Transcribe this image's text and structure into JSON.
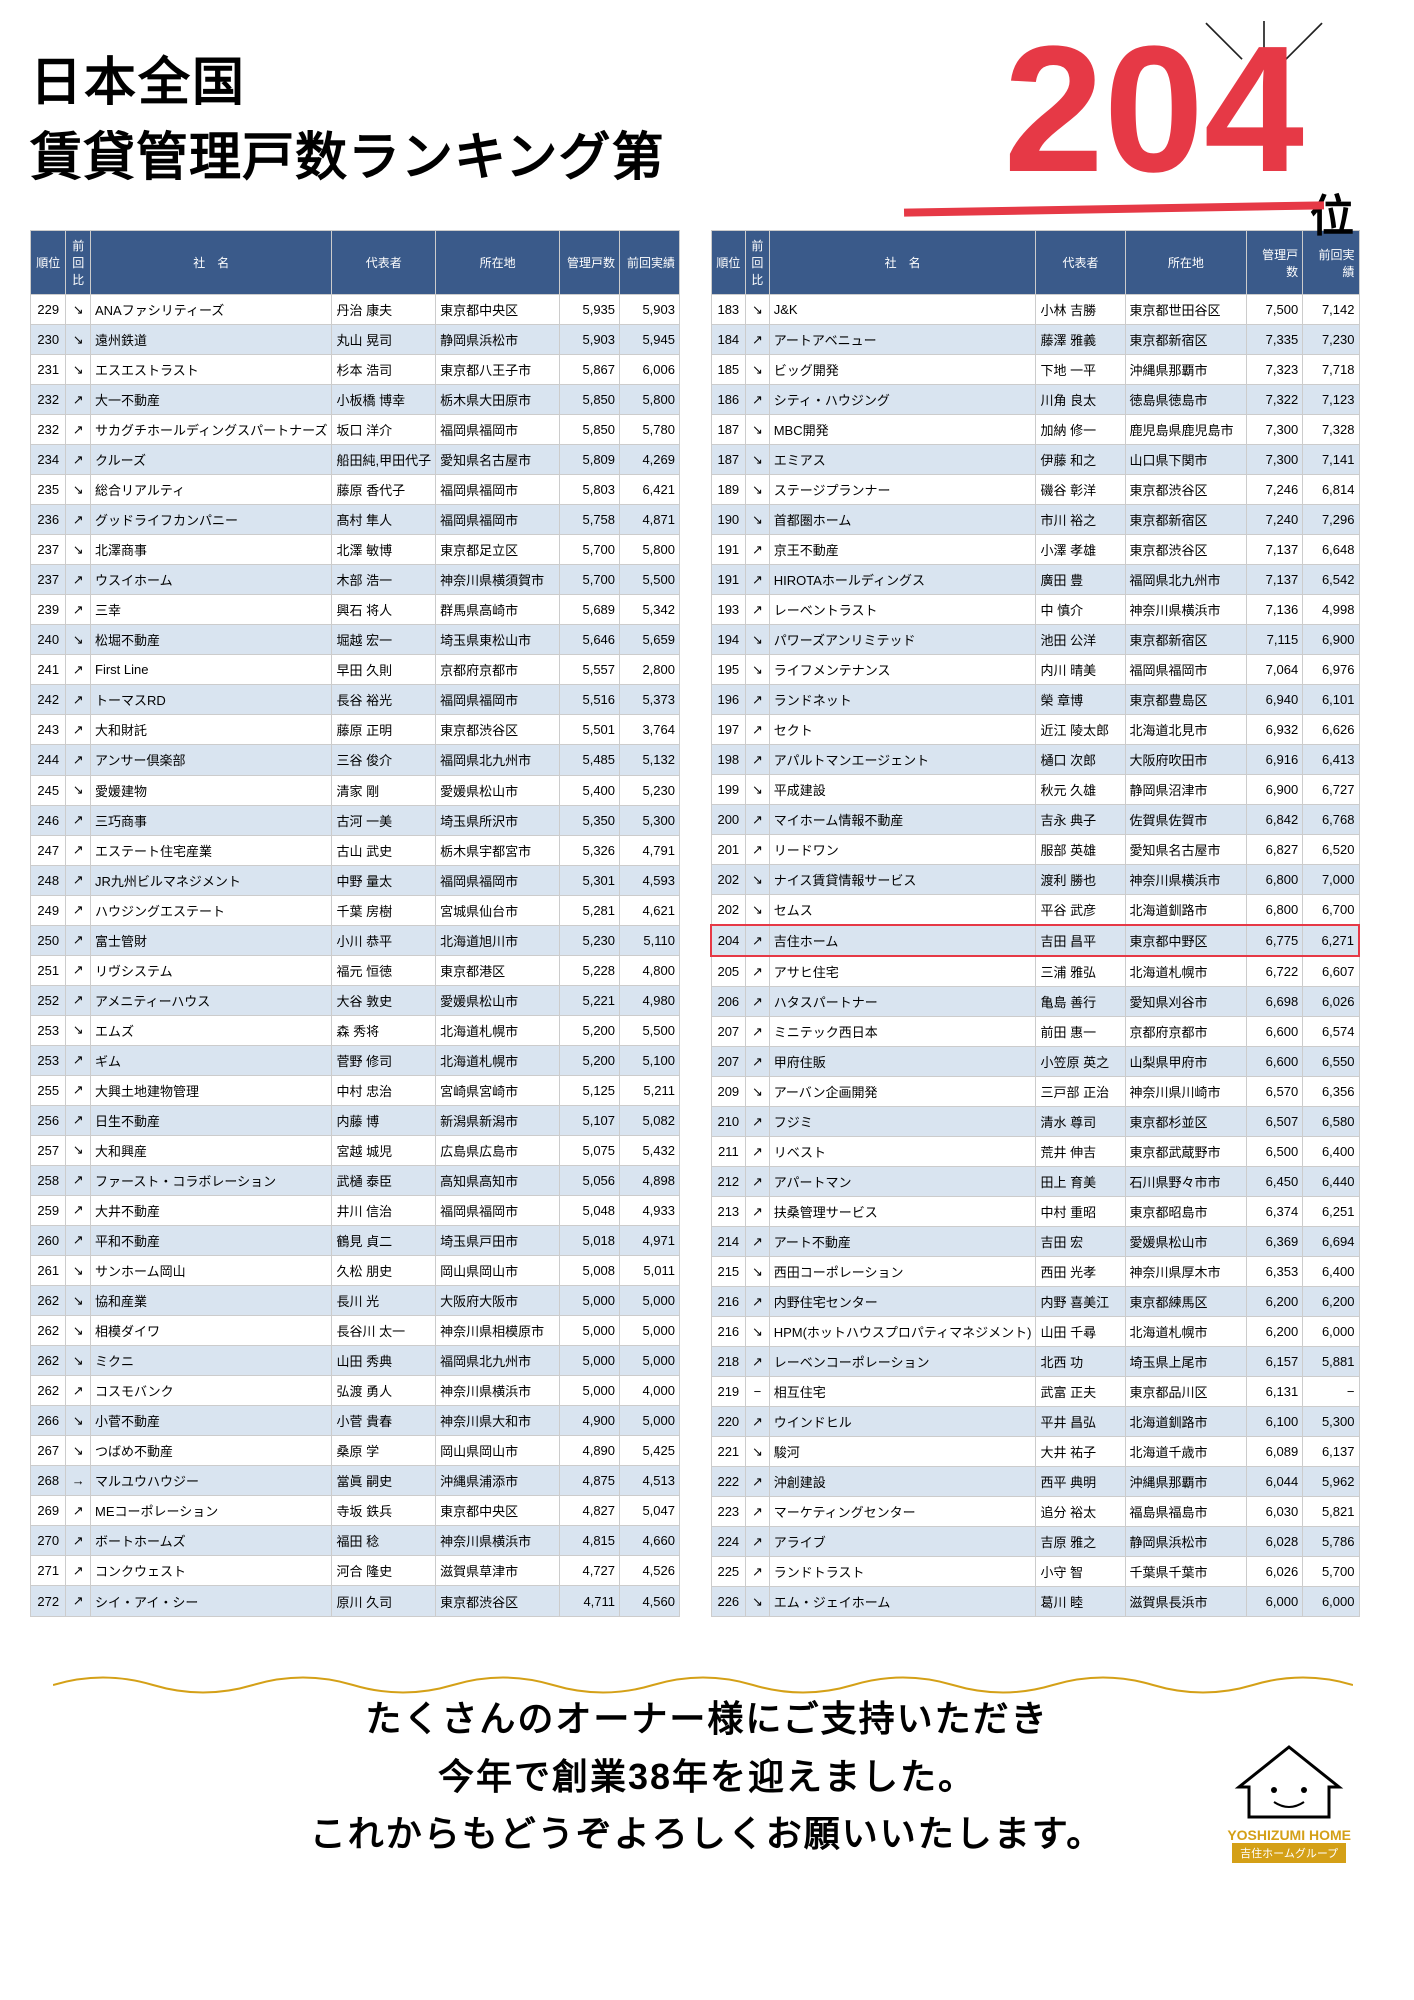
{
  "header": {
    "title_line1": "日本全国",
    "title_line2": "賃貸管理戸数ランキング第",
    "rank_number": "204",
    "rank_suffix": "位",
    "rank_color": "#e63946"
  },
  "table_headers": {
    "rank": "順位",
    "trend": "前回比",
    "name": "社　名",
    "rep": "代表者",
    "loc": "所在地",
    "count": "管理戸数",
    "prev": "前回実績"
  },
  "left_rows": [
    {
      "rank": "229",
      "trend": "↘",
      "name": "ANAファシリティーズ",
      "rep": "丹治 康夫",
      "loc": "東京都中央区",
      "count": "5,935",
      "prev": "5,903"
    },
    {
      "rank": "230",
      "trend": "↘",
      "name": "遠州鉄道",
      "rep": "丸山 晃司",
      "loc": "静岡県浜松市",
      "count": "5,903",
      "prev": "5,945"
    },
    {
      "rank": "231",
      "trend": "↘",
      "name": "エスエストラスト",
      "rep": "杉本 浩司",
      "loc": "東京都八王子市",
      "count": "5,867",
      "prev": "6,006"
    },
    {
      "rank": "232",
      "trend": "↗",
      "name": "大一不動産",
      "rep": "小板橋 博幸",
      "loc": "栃木県大田原市",
      "count": "5,850",
      "prev": "5,800"
    },
    {
      "rank": "232",
      "trend": "↗",
      "name": "サカグチホールディングスパートナーズ",
      "rep": "坂口 洋介",
      "loc": "福岡県福岡市",
      "count": "5,850",
      "prev": "5,780"
    },
    {
      "rank": "234",
      "trend": "↗",
      "name": "クルーズ",
      "rep": "船田純,甲田代子",
      "loc": "愛知県名古屋市",
      "count": "5,809",
      "prev": "4,269"
    },
    {
      "rank": "235",
      "trend": "↘",
      "name": "総合リアルティ",
      "rep": "藤原 香代子",
      "loc": "福岡県福岡市",
      "count": "5,803",
      "prev": "6,421"
    },
    {
      "rank": "236",
      "trend": "↗",
      "name": "グッドライフカンパニー",
      "rep": "髙村 隼人",
      "loc": "福岡県福岡市",
      "count": "5,758",
      "prev": "4,871"
    },
    {
      "rank": "237",
      "trend": "↘",
      "name": "北澤商事",
      "rep": "北澤 敏博",
      "loc": "東京都足立区",
      "count": "5,700",
      "prev": "5,800"
    },
    {
      "rank": "237",
      "trend": "↗",
      "name": "ウスイホーム",
      "rep": "木部 浩一",
      "loc": "神奈川県横須賀市",
      "count": "5,700",
      "prev": "5,500"
    },
    {
      "rank": "239",
      "trend": "↗",
      "name": "三幸",
      "rep": "興石 将人",
      "loc": "群馬県高崎市",
      "count": "5,689",
      "prev": "5,342"
    },
    {
      "rank": "240",
      "trend": "↘",
      "name": "松堀不動産",
      "rep": "堀越 宏一",
      "loc": "埼玉県東松山市",
      "count": "5,646",
      "prev": "5,659"
    },
    {
      "rank": "241",
      "trend": "↗",
      "name": "First Line",
      "rep": "早田 久則",
      "loc": "京都府京都市",
      "count": "5,557",
      "prev": "2,800"
    },
    {
      "rank": "242",
      "trend": "↗",
      "name": "トーマスRD",
      "rep": "長谷 裕光",
      "loc": "福岡県福岡市",
      "count": "5,516",
      "prev": "5,373"
    },
    {
      "rank": "243",
      "trend": "↗",
      "name": "大和財託",
      "rep": "藤原 正明",
      "loc": "東京都渋谷区",
      "count": "5,501",
      "prev": "3,764"
    },
    {
      "rank": "244",
      "trend": "↗",
      "name": "アンサー倶楽部",
      "rep": "三谷 俊介",
      "loc": "福岡県北九州市",
      "count": "5,485",
      "prev": "5,132"
    },
    {
      "rank": "245",
      "trend": "↘",
      "name": "愛媛建物",
      "rep": "清家 剛",
      "loc": "愛媛県松山市",
      "count": "5,400",
      "prev": "5,230"
    },
    {
      "rank": "246",
      "trend": "↗",
      "name": "三巧商事",
      "rep": "古河 一美",
      "loc": "埼玉県所沢市",
      "count": "5,350",
      "prev": "5,300"
    },
    {
      "rank": "247",
      "trend": "↗",
      "name": "エステート住宅産業",
      "rep": "古山 武史",
      "loc": "栃木県宇都宮市",
      "count": "5,326",
      "prev": "4,791"
    },
    {
      "rank": "248",
      "trend": "↗",
      "name": "JR九州ビルマネジメント",
      "rep": "中野 量太",
      "loc": "福岡県福岡市",
      "count": "5,301",
      "prev": "4,593"
    },
    {
      "rank": "249",
      "trend": "↗",
      "name": "ハウジングエステート",
      "rep": "千葉 房樹",
      "loc": "宮城県仙台市",
      "count": "5,281",
      "prev": "4,621"
    },
    {
      "rank": "250",
      "trend": "↗",
      "name": "富士管財",
      "rep": "小川 恭平",
      "loc": "北海道旭川市",
      "count": "5,230",
      "prev": "5,110"
    },
    {
      "rank": "251",
      "trend": "↗",
      "name": "リヴシステム",
      "rep": "福元 恒徳",
      "loc": "東京都港区",
      "count": "5,228",
      "prev": "4,800"
    },
    {
      "rank": "252",
      "trend": "↗",
      "name": "アメニティーハウス",
      "rep": "大谷 敦史",
      "loc": "愛媛県松山市",
      "count": "5,221",
      "prev": "4,980"
    },
    {
      "rank": "253",
      "trend": "↘",
      "name": "エムズ",
      "rep": "森 秀将",
      "loc": "北海道札幌市",
      "count": "5,200",
      "prev": "5,500"
    },
    {
      "rank": "253",
      "trend": "↗",
      "name": "ギム",
      "rep": "菅野 修司",
      "loc": "北海道札幌市",
      "count": "5,200",
      "prev": "5,100"
    },
    {
      "rank": "255",
      "trend": "↗",
      "name": "大興土地建物管理",
      "rep": "中村 忠治",
      "loc": "宮崎県宮崎市",
      "count": "5,125",
      "prev": "5,211"
    },
    {
      "rank": "256",
      "trend": "↗",
      "name": "日生不動産",
      "rep": "内藤 博",
      "loc": "新潟県新潟市",
      "count": "5,107",
      "prev": "5,082"
    },
    {
      "rank": "257",
      "trend": "↘",
      "name": "大和興産",
      "rep": "宮越 城児",
      "loc": "広島県広島市",
      "count": "5,075",
      "prev": "5,432"
    },
    {
      "rank": "258",
      "trend": "↗",
      "name": "ファースト・コラボレーション",
      "rep": "武樋 泰臣",
      "loc": "高知県高知市",
      "count": "5,056",
      "prev": "4,898"
    },
    {
      "rank": "259",
      "trend": "↗",
      "name": "大井不動産",
      "rep": "井川 信治",
      "loc": "福岡県福岡市",
      "count": "5,048",
      "prev": "4,933"
    },
    {
      "rank": "260",
      "trend": "↗",
      "name": "平和不動産",
      "rep": "鶴見 貞二",
      "loc": "埼玉県戸田市",
      "count": "5,018",
      "prev": "4,971"
    },
    {
      "rank": "261",
      "trend": "↘",
      "name": "サンホーム岡山",
      "rep": "久松 朋史",
      "loc": "岡山県岡山市",
      "count": "5,008",
      "prev": "5,011"
    },
    {
      "rank": "262",
      "trend": "↘",
      "name": "協和産業",
      "rep": "長川 光",
      "loc": "大阪府大阪市",
      "count": "5,000",
      "prev": "5,000"
    },
    {
      "rank": "262",
      "trend": "↘",
      "name": "相模ダイワ",
      "rep": "長谷川 太一",
      "loc": "神奈川県相模原市",
      "count": "5,000",
      "prev": "5,000"
    },
    {
      "rank": "262",
      "trend": "↘",
      "name": "ミクニ",
      "rep": "山田 秀典",
      "loc": "福岡県北九州市",
      "count": "5,000",
      "prev": "5,000"
    },
    {
      "rank": "262",
      "trend": "↗",
      "name": "コスモバンク",
      "rep": "弘渡 勇人",
      "loc": "神奈川県横浜市",
      "count": "5,000",
      "prev": "4,000"
    },
    {
      "rank": "266",
      "trend": "↘",
      "name": "小菅不動産",
      "rep": "小菅 貴春",
      "loc": "神奈川県大和市",
      "count": "4,900",
      "prev": "5,000"
    },
    {
      "rank": "267",
      "trend": "↘",
      "name": "つばめ不動産",
      "rep": "桑原 学",
      "loc": "岡山県岡山市",
      "count": "4,890",
      "prev": "5,425"
    },
    {
      "rank": "268",
      "trend": "→",
      "name": "マルユウハウジー",
      "rep": "當眞 嗣史",
      "loc": "沖縄県浦添市",
      "count": "4,875",
      "prev": "4,513"
    },
    {
      "rank": "269",
      "trend": "↗",
      "name": "MEコーポレーション",
      "rep": "寺坂 鉄兵",
      "loc": "東京都中央区",
      "count": "4,827",
      "prev": "5,047"
    },
    {
      "rank": "270",
      "trend": "↗",
      "name": "ボートホームズ",
      "rep": "福田 稔",
      "loc": "神奈川県横浜市",
      "count": "4,815",
      "prev": "4,660"
    },
    {
      "rank": "271",
      "trend": "↗",
      "name": "コンクウェスト",
      "rep": "河合 隆史",
      "loc": "滋賀県草津市",
      "count": "4,727",
      "prev": "4,526"
    },
    {
      "rank": "272",
      "trend": "↗",
      "name": "シイ・アイ・シー",
      "rep": "原川 久司",
      "loc": "東京都渋谷区",
      "count": "4,711",
      "prev": "4,560"
    }
  ],
  "right_rows": [
    {
      "rank": "183",
      "trend": "↘",
      "name": "J&K",
      "rep": "小林 吉勝",
      "loc": "東京都世田谷区",
      "count": "7,500",
      "prev": "7,142"
    },
    {
      "rank": "184",
      "trend": "↗",
      "name": "アートアベニュー",
      "rep": "藤澤 雅義",
      "loc": "東京都新宿区",
      "count": "7,335",
      "prev": "7,230"
    },
    {
      "rank": "185",
      "trend": "↘",
      "name": "ビッグ開発",
      "rep": "下地 一平",
      "loc": "沖縄県那覇市",
      "count": "7,323",
      "prev": "7,718"
    },
    {
      "rank": "186",
      "trend": "↗",
      "name": "シティ・ハウジング",
      "rep": "川角 良太",
      "loc": "徳島県徳島市",
      "count": "7,322",
      "prev": "7,123"
    },
    {
      "rank": "187",
      "trend": "↘",
      "name": "MBC開発",
      "rep": "加納 修一",
      "loc": "鹿児島県鹿児島市",
      "count": "7,300",
      "prev": "7,328"
    },
    {
      "rank": "187",
      "trend": "↘",
      "name": "エミアス",
      "rep": "伊藤 和之",
      "loc": "山口県下関市",
      "count": "7,300",
      "prev": "7,141"
    },
    {
      "rank": "189",
      "trend": "↘",
      "name": "ステージプランナー",
      "rep": "磯谷 彰洋",
      "loc": "東京都渋谷区",
      "count": "7,246",
      "prev": "6,814"
    },
    {
      "rank": "190",
      "trend": "↘",
      "name": "首都圏ホーム",
      "rep": "市川 裕之",
      "loc": "東京都新宿区",
      "count": "7,240",
      "prev": "7,296"
    },
    {
      "rank": "191",
      "trend": "↗",
      "name": "京王不動産",
      "rep": "小澤 孝雄",
      "loc": "東京都渋谷区",
      "count": "7,137",
      "prev": "6,648"
    },
    {
      "rank": "191",
      "trend": "↗",
      "name": "HIROTAホールディングス",
      "rep": "廣田 豊",
      "loc": "福岡県北九州市",
      "count": "7,137",
      "prev": "6,542"
    },
    {
      "rank": "193",
      "trend": "↗",
      "name": "レーベントラスト",
      "rep": "中 慎介",
      "loc": "神奈川県横浜市",
      "count": "7,136",
      "prev": "4,998"
    },
    {
      "rank": "194",
      "trend": "↘",
      "name": "パワーズアンリミテッド",
      "rep": "池田 公洋",
      "loc": "東京都新宿区",
      "count": "7,115",
      "prev": "6,900"
    },
    {
      "rank": "195",
      "trend": "↘",
      "name": "ライフメンテナンス",
      "rep": "内川 晴美",
      "loc": "福岡県福岡市",
      "count": "7,064",
      "prev": "6,976"
    },
    {
      "rank": "196",
      "trend": "↗",
      "name": "ランドネット",
      "rep": "榮 章博",
      "loc": "東京都豊島区",
      "count": "6,940",
      "prev": "6,101"
    },
    {
      "rank": "197",
      "trend": "↗",
      "name": "セクト",
      "rep": "近江 陵太郎",
      "loc": "北海道北見市",
      "count": "6,932",
      "prev": "6,626"
    },
    {
      "rank": "198",
      "trend": "↗",
      "name": "アパルトマンエージェント",
      "rep": "樋口 次郎",
      "loc": "大阪府吹田市",
      "count": "6,916",
      "prev": "6,413"
    },
    {
      "rank": "199",
      "trend": "↘",
      "name": "平成建設",
      "rep": "秋元 久雄",
      "loc": "静岡県沼津市",
      "count": "6,900",
      "prev": "6,727"
    },
    {
      "rank": "200",
      "trend": "↗",
      "name": "マイホーム情報不動産",
      "rep": "吉永 典子",
      "loc": "佐賀県佐賀市",
      "count": "6,842",
      "prev": "6,768"
    },
    {
      "rank": "201",
      "trend": "↗",
      "name": "リードワン",
      "rep": "服部 英雄",
      "loc": "愛知県名古屋市",
      "count": "6,827",
      "prev": "6,520"
    },
    {
      "rank": "202",
      "trend": "↘",
      "name": "ナイス賃貸情報サービス",
      "rep": "渡利 勝也",
      "loc": "神奈川県横浜市",
      "count": "6,800",
      "prev": "7,000"
    },
    {
      "rank": "202",
      "trend": "↘",
      "name": "セムス",
      "rep": "平谷 武彦",
      "loc": "北海道釧路市",
      "count": "6,800",
      "prev": "6,700"
    },
    {
      "rank": "204",
      "trend": "↗",
      "name": "吉住ホーム",
      "rep": "吉田 昌平",
      "loc": "東京都中野区",
      "count": "6,775",
      "prev": "6,271",
      "highlight": true
    },
    {
      "rank": "205",
      "trend": "↗",
      "name": "アサヒ住宅",
      "rep": "三浦 雅弘",
      "loc": "北海道札幌市",
      "count": "6,722",
      "prev": "6,607"
    },
    {
      "rank": "206",
      "trend": "↗",
      "name": "ハタスパートナー",
      "rep": "亀島 善行",
      "loc": "愛知県刈谷市",
      "count": "6,698",
      "prev": "6,026"
    },
    {
      "rank": "207",
      "trend": "↗",
      "name": "ミニテック西日本",
      "rep": "前田 惠一",
      "loc": "京都府京都市",
      "count": "6,600",
      "prev": "6,574"
    },
    {
      "rank": "207",
      "trend": "↗",
      "name": "甲府住販",
      "rep": "小笠原 英之",
      "loc": "山梨県甲府市",
      "count": "6,600",
      "prev": "6,550"
    },
    {
      "rank": "209",
      "trend": "↘",
      "name": "アーバン企画開発",
      "rep": "三戸部 正治",
      "loc": "神奈川県川崎市",
      "count": "6,570",
      "prev": "6,356"
    },
    {
      "rank": "210",
      "trend": "↗",
      "name": "フジミ",
      "rep": "清水 尊司",
      "loc": "東京都杉並区",
      "count": "6,507",
      "prev": "6,580"
    },
    {
      "rank": "211",
      "trend": "↗",
      "name": "リベスト",
      "rep": "荒井 伸吉",
      "loc": "東京都武蔵野市",
      "count": "6,500",
      "prev": "6,400"
    },
    {
      "rank": "212",
      "trend": "↗",
      "name": "アパートマン",
      "rep": "田上 育美",
      "loc": "石川県野々市市",
      "count": "6,450",
      "prev": "6,440"
    },
    {
      "rank": "213",
      "trend": "↗",
      "name": "扶桑管理サービス",
      "rep": "中村 重昭",
      "loc": "東京都昭島市",
      "count": "6,374",
      "prev": "6,251"
    },
    {
      "rank": "214",
      "trend": "↗",
      "name": "アート不動産",
      "rep": "吉田 宏",
      "loc": "愛媛県松山市",
      "count": "6,369",
      "prev": "6,694"
    },
    {
      "rank": "215",
      "trend": "↘",
      "name": "西田コーポレーション",
      "rep": "西田 光孝",
      "loc": "神奈川県厚木市",
      "count": "6,353",
      "prev": "6,400"
    },
    {
      "rank": "216",
      "trend": "↗",
      "name": "内野住宅センター",
      "rep": "内野 喜美江",
      "loc": "東京都練馬区",
      "count": "6,200",
      "prev": "6,200"
    },
    {
      "rank": "216",
      "trend": "↘",
      "name": "HPM(ホットハウスプロパティマネジメント)",
      "rep": "山田 千尋",
      "loc": "北海道札幌市",
      "count": "6,200",
      "prev": "6,000"
    },
    {
      "rank": "218",
      "trend": "↗",
      "name": "レーベンコーポレーション",
      "rep": "北西 功",
      "loc": "埼玉県上尾市",
      "count": "6,157",
      "prev": "5,881"
    },
    {
      "rank": "219",
      "trend": "−",
      "name": "相互住宅",
      "rep": "武富 正夫",
      "loc": "東京都品川区",
      "count": "6,131",
      "prev": "−"
    },
    {
      "rank": "220",
      "trend": "↗",
      "name": "ウインドヒル",
      "rep": "平井 昌弘",
      "loc": "北海道釧路市",
      "count": "6,100",
      "prev": "5,300"
    },
    {
      "rank": "221",
      "trend": "↘",
      "name": "駿河",
      "rep": "大井 祐子",
      "loc": "北海道千歳市",
      "count": "6,089",
      "prev": "6,137"
    },
    {
      "rank": "222",
      "trend": "↗",
      "name": "沖創建設",
      "rep": "西平 典明",
      "loc": "沖縄県那覇市",
      "count": "6,044",
      "prev": "5,962"
    },
    {
      "rank": "223",
      "trend": "↗",
      "name": "マーケティングセンター",
      "rep": "追分 裕太",
      "loc": "福島県福島市",
      "count": "6,030",
      "prev": "5,821"
    },
    {
      "rank": "224",
      "trend": "↗",
      "name": "アライブ",
      "rep": "吉原 雅之",
      "loc": "静岡県浜松市",
      "count": "6,028",
      "prev": "5,786"
    },
    {
      "rank": "225",
      "trend": "↗",
      "name": "ランドトラスト",
      "rep": "小守 智",
      "loc": "千葉県千葉市",
      "count": "6,026",
      "prev": "5,700"
    },
    {
      "rank": "226",
      "trend": "↘",
      "name": "エム・ジェイホーム",
      "rep": "葛川 睦",
      "loc": "滋賀県長浜市",
      "count": "6,000",
      "prev": "6,000"
    }
  ],
  "footer": {
    "line1": "たくさんのオーナー様にご支持いただき",
    "line2": "今年で創業38年を迎えました。",
    "line3": "これからもどうぞよろしくお願いいたします。",
    "logo_main": "YOSHIZUMI HOME",
    "logo_sub": "吉住ホームグループ"
  },
  "colors": {
    "header_bg": "#3a5a8a",
    "row_alt": "#d9e4f0",
    "highlight": "#e63946",
    "logo": "#d4a017"
  }
}
